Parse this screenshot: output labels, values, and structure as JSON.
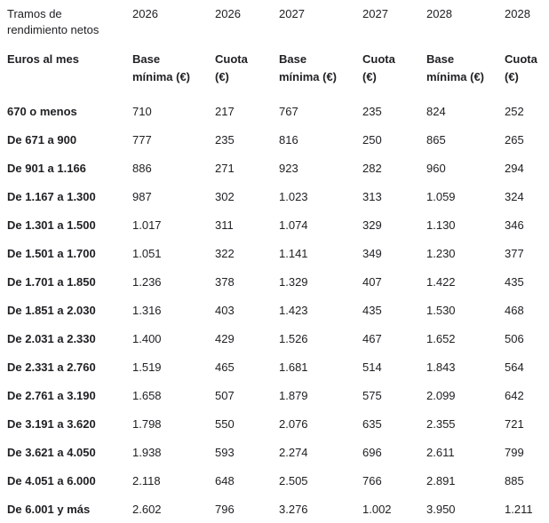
{
  "chart_data": {
    "type": "table",
    "corner_label": "Tramos de rendimiento netos",
    "year_headers": [
      "2026",
      "2026",
      "2027",
      "2027",
      "2028",
      "2028"
    ],
    "column_headers": [
      "Euros al mes",
      "Base mínima (€)",
      "Cuota (€)",
      "Base mínima (€)",
      "Cuota (€)",
      "Base mínima (€)",
      "Cuota (€)"
    ],
    "rows": [
      {
        "label": "670 o menos",
        "values": [
          "710",
          "217",
          "767",
          "235",
          "824",
          "252"
        ]
      },
      {
        "label": "De 671 a 900",
        "values": [
          "777",
          "235",
          "816",
          "250",
          "865",
          "265"
        ]
      },
      {
        "label": "De 901 a 1.166",
        "values": [
          "886",
          "271",
          "923",
          "282",
          "960",
          "294"
        ]
      },
      {
        "label": "De 1.167 a 1.300",
        "values": [
          "987",
          "302",
          "1.023",
          "313",
          "1.059",
          "324"
        ]
      },
      {
        "label": "De 1.301 a 1.500",
        "values": [
          "1.017",
          "311",
          "1.074",
          "329",
          "1.130",
          "346"
        ]
      },
      {
        "label": "De 1.501 a 1.700",
        "values": [
          "1.051",
          "322",
          "1.141",
          "349",
          "1.230",
          "377"
        ]
      },
      {
        "label": "De 1.701 a 1.850",
        "values": [
          "1.236",
          "378",
          "1.329",
          "407",
          "1.422",
          "435"
        ]
      },
      {
        "label": "De 1.851 a 2.030",
        "values": [
          "1.316",
          "403",
          "1.423",
          "435",
          "1.530",
          "468"
        ]
      },
      {
        "label": "De 2.031 a 2.330",
        "values": [
          "1.400",
          "429",
          "1.526",
          "467",
          "1.652",
          "506"
        ]
      },
      {
        "label": "De 2.331 a 2.760",
        "values": [
          "1.519",
          "465",
          "1.681",
          "514",
          "1.843",
          "564"
        ]
      },
      {
        "label": "De 2.761 a 3.190",
        "values": [
          "1.658",
          "507",
          "1.879",
          "575",
          "2.099",
          "642"
        ]
      },
      {
        "label": "De 3.191 a 3.620",
        "values": [
          "1.798",
          "550",
          "2.076",
          "635",
          "2.355",
          "721"
        ]
      },
      {
        "label": "De 3.621 a 4.050",
        "values": [
          "1.938",
          "593",
          "2.274",
          "696",
          "2.611",
          "799"
        ]
      },
      {
        "label": "De 4.051 a 6.000",
        "values": [
          "2.118",
          "648",
          "2.505",
          "766",
          "2.891",
          "885"
        ]
      },
      {
        "label": "De 6.001 y más",
        "values": [
          "2.602",
          "796",
          "3.276",
          "1.002",
          "3.950",
          "1.211"
        ]
      }
    ]
  },
  "colors": {
    "text": "#202124",
    "background": "#ffffff"
  }
}
